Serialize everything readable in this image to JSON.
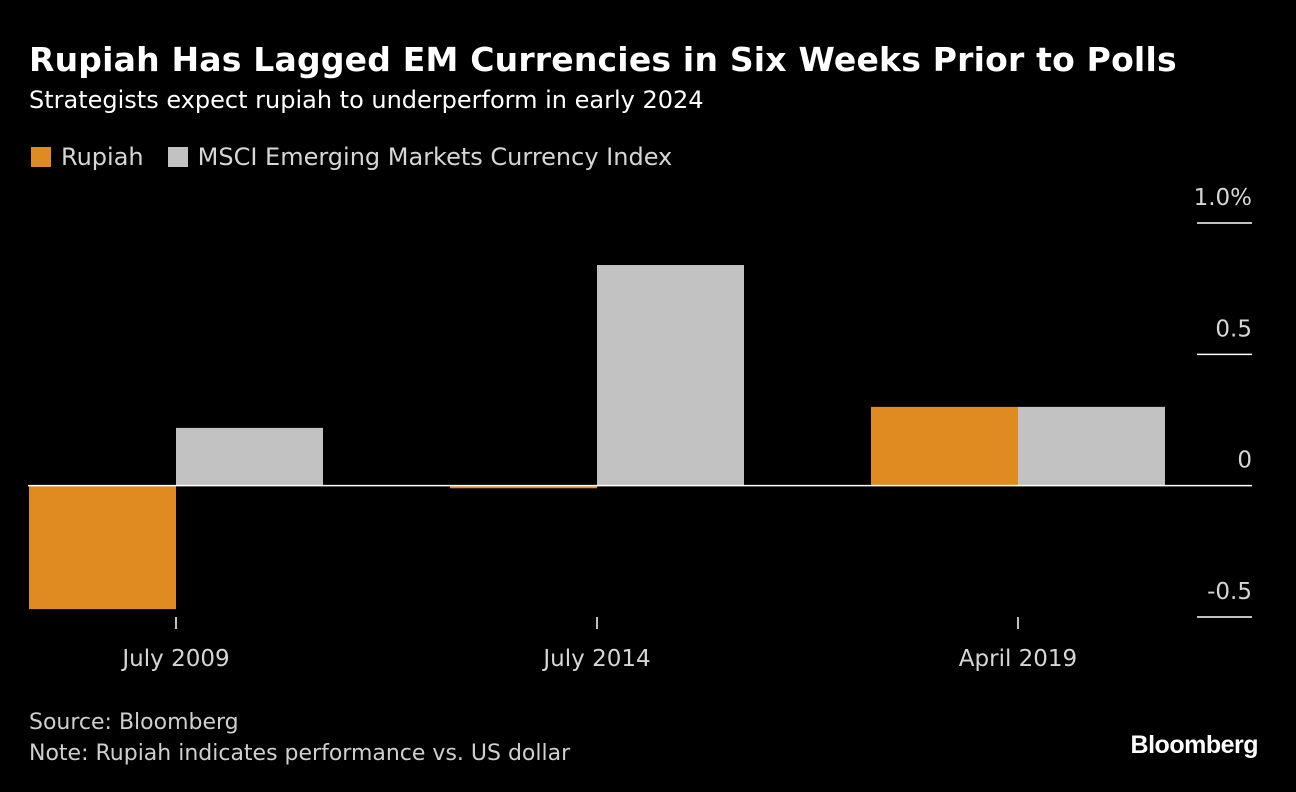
{
  "header": {
    "title": "Rupiah Has Lagged EM Currencies in Six Weeks Prior to Polls",
    "subtitle": "Strategists expect rupiah to underperform in early 2024"
  },
  "legend": [
    {
      "label": "Rupiah",
      "color": "#e08b22"
    },
    {
      "label": "MSCI Emerging Markets Currency Index",
      "color": "#c2c2c2"
    }
  ],
  "chart_data": {
    "type": "bar",
    "title": "Rupiah Has Lagged EM Currencies in Six Weeks Prior to Polls",
    "subtitle": "Strategists expect rupiah to underperform in early 2024",
    "categories": [
      "July 2009",
      "July 2014",
      "April 2019"
    ],
    "series": [
      {
        "name": "Rupiah",
        "color": "#e08b22",
        "values": [
          -0.47,
          -0.01,
          0.3
        ]
      },
      {
        "name": "MSCI Emerging Markets Currency Index",
        "color": "#c2c2c2",
        "values": [
          0.22,
          0.84,
          0.3
        ]
      }
    ],
    "ylim": [
      -0.5,
      1.0
    ],
    "yticks": [
      {
        "value": 1.0,
        "label": "1.0%"
      },
      {
        "value": 0.5,
        "label": "0.5"
      },
      {
        "value": 0,
        "label": "0"
      },
      {
        "value": -0.5,
        "label": "-0.5"
      }
    ],
    "xlabel": "",
    "ylabel": "",
    "legend_position": "top-left",
    "grid": false
  },
  "footer": {
    "source": "Source: Bloomberg",
    "note": "Note: Rupiah indicates performance vs. US dollar",
    "brand": "Bloomberg"
  }
}
